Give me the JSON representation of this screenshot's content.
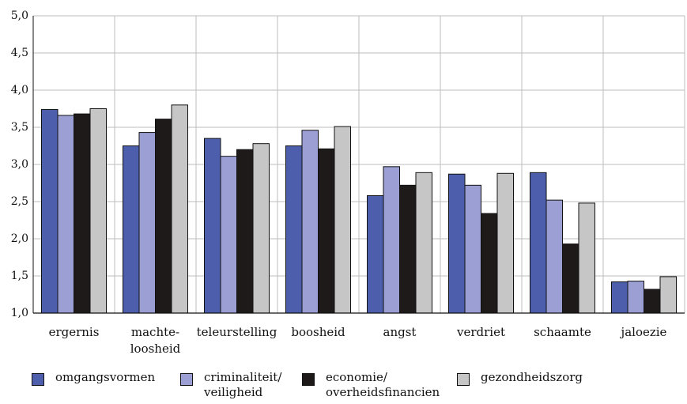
{
  "chart_data": {
    "type": "bar",
    "categories": [
      "ergernis",
      "machte-\nloosheid",
      "teleurstelling",
      "boosheid",
      "angst",
      "verdriet",
      "schaamte",
      "jaloezie"
    ],
    "series": [
      {
        "name": "omgangsvormen",
        "color": "#4d5ead",
        "values": [
          3.74,
          3.25,
          3.35,
          3.25,
          2.58,
          2.87,
          2.89,
          1.42
        ]
      },
      {
        "name": "criminaliteit/\nveiligheid",
        "color": "#9b9fd3",
        "values": [
          3.66,
          3.43,
          3.11,
          3.46,
          2.97,
          2.72,
          2.52,
          1.43
        ]
      },
      {
        "name": "economie/\noverheidsfinancien",
        "color": "#1f1a1a",
        "values": [
          3.68,
          3.61,
          3.2,
          3.21,
          2.72,
          2.34,
          1.93,
          1.32
        ]
      },
      {
        "name": "gezondheidszorg",
        "color": "#c6c6c6",
        "values": [
          3.75,
          3.8,
          3.28,
          3.51,
          2.89,
          2.88,
          2.48,
          1.49
        ]
      }
    ],
    "yticks": [
      "1,0",
      "1,5",
      "2,0",
      "2,5",
      "3,0",
      "3,5",
      "4,0",
      "4,5",
      "5,0"
    ],
    "ylim": [
      1.0,
      5.0
    ],
    "grid": true,
    "legend": "bottom"
  }
}
